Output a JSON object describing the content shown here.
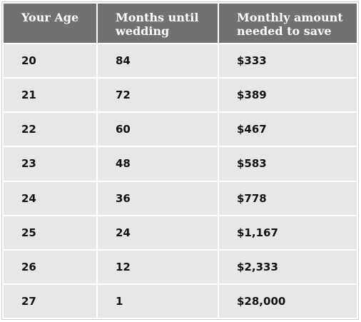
{
  "table": {
    "headers": [
      {
        "line1": "Your Age",
        "line2": ""
      },
      {
        "line1": "Months until",
        "line2": "wedding"
      },
      {
        "line1": "Monthly amount",
        "line2": "needed to save"
      }
    ],
    "rows": [
      {
        "age": "20",
        "months": "84",
        "amount": "$333"
      },
      {
        "age": "21",
        "months": "72",
        "amount": "$389"
      },
      {
        "age": "22",
        "months": "60",
        "amount": "$467"
      },
      {
        "age": "23",
        "months": "48",
        "amount": "$583"
      },
      {
        "age": "24",
        "months": "36",
        "amount": "$778"
      },
      {
        "age": "25",
        "months": "24",
        "amount": "$1,167"
      },
      {
        "age": "26",
        "months": "12",
        "amount": "$2,333"
      },
      {
        "age": "27",
        "months": "1",
        "amount": "$28,000"
      }
    ]
  },
  "colors": {
    "header_bg": "#707173",
    "header_text": "#ffffff",
    "cell_bg": "#e7e7e8",
    "cell_text": "#111111"
  }
}
